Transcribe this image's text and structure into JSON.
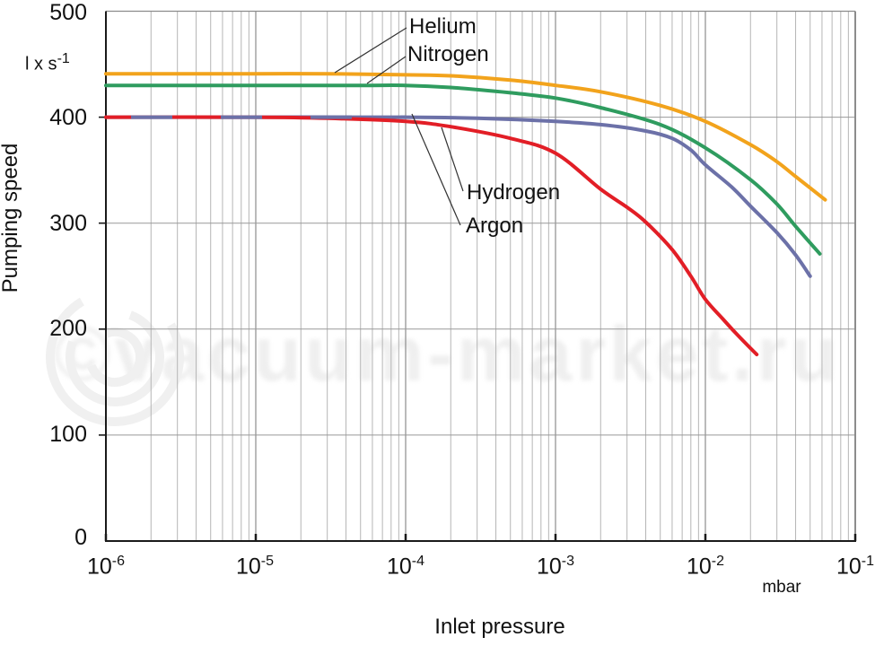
{
  "watermark": {
    "text": "©vacuum-market.ru"
  },
  "labels": {
    "y_axis_title": "Pumping speed",
    "y_unit_base": "l x s",
    "y_unit_exp": "-1",
    "x_axis_title": "Inlet pressure",
    "x_unit": "mbar"
  },
  "chart_data": {
    "type": "line",
    "x_scale": "log",
    "xlabel": "Inlet pressure",
    "x_unit": "mbar",
    "ylabel": "Pumping speed",
    "y_unit": "l x s^-1",
    "xlim": [
      1e-06,
      0.1
    ],
    "ylim": [
      0,
      500
    ],
    "grid": "vertical log minor+major lines, horizontal lines every 100",
    "legend_position": "inline labels with leader lines",
    "y_ticks": [
      0,
      100,
      200,
      300,
      400,
      500
    ],
    "x_ticks": [
      {
        "base": "10",
        "exp": "-6"
      },
      {
        "base": "10",
        "exp": "-5"
      },
      {
        "base": "10",
        "exp": "-4"
      },
      {
        "base": "10",
        "exp": "-3"
      },
      {
        "base": "10",
        "exp": "-2"
      },
      {
        "base": "10",
        "exp": "-1"
      }
    ],
    "colors": {
      "helium": "#F2A31C",
      "nitrogen": "#2F9C5F",
      "argon": "#6C71A8",
      "hydrogen": "#E21E26",
      "grid_minor": "#B5B5B5",
      "grid_major": "#8C8C8C",
      "grid_horizontal": "#999999",
      "axis": "#1A1A1A",
      "leader_line": "#333333"
    },
    "series": [
      {
        "name": "Helium",
        "color": "#F2A31C",
        "points": [
          [
            1e-06,
            441
          ],
          [
            3e-06,
            441
          ],
          [
            1e-05,
            441
          ],
          [
            3e-05,
            441
          ],
          [
            0.0001,
            440
          ],
          [
            0.0002,
            439
          ],
          [
            0.0005,
            435
          ],
          [
            0.001,
            430
          ],
          [
            0.002,
            424
          ],
          [
            0.005,
            411
          ],
          [
            0.01,
            396
          ],
          [
            0.02,
            374
          ],
          [
            0.03,
            358
          ],
          [
            0.04,
            344
          ],
          [
            0.063,
            322
          ]
        ]
      },
      {
        "name": "Nitrogen",
        "color": "#2F9C5F",
        "points": [
          [
            1e-06,
            430
          ],
          [
            3e-06,
            430
          ],
          [
            1e-05,
            430
          ],
          [
            5e-05,
            430
          ],
          [
            0.0001,
            430
          ],
          [
            0.0002,
            428
          ],
          [
            0.0005,
            423
          ],
          [
            0.001,
            418
          ],
          [
            0.002,
            409
          ],
          [
            0.005,
            393
          ],
          [
            0.01,
            371
          ],
          [
            0.02,
            341
          ],
          [
            0.03,
            318
          ],
          [
            0.04,
            297
          ],
          [
            0.058,
            271
          ]
        ]
      },
      {
        "name": "Argon",
        "color": "#6C71A8",
        "points": [
          [
            1e-06,
            400
          ],
          [
            1e-05,
            400
          ],
          [
            0.0001,
            400
          ],
          [
            0.0003,
            399
          ],
          [
            0.001,
            396
          ],
          [
            0.002,
            393
          ],
          [
            0.004,
            387
          ],
          [
            0.006,
            380
          ],
          [
            0.008,
            369
          ],
          [
            0.01,
            355
          ],
          [
            0.015,
            334
          ],
          [
            0.02,
            316
          ],
          [
            0.03,
            291
          ],
          [
            0.04,
            270
          ],
          [
            0.05,
            250
          ]
        ]
      },
      {
        "name": "Hydrogen",
        "color": "#E21E26",
        "points": [
          [
            1e-06,
            400
          ],
          [
            1e-05,
            400
          ],
          [
            3e-05,
            399
          ],
          [
            0.0001,
            396
          ],
          [
            0.0002,
            391
          ],
          [
            0.0005,
            380
          ],
          [
            0.001,
            366
          ],
          [
            0.002,
            332
          ],
          [
            0.003,
            315
          ],
          [
            0.004,
            301
          ],
          [
            0.006,
            275
          ],
          [
            0.008,
            250
          ],
          [
            0.01,
            228
          ],
          [
            0.013,
            210
          ],
          [
            0.016,
            196
          ],
          [
            0.022,
            176
          ]
        ]
      }
    ]
  }
}
